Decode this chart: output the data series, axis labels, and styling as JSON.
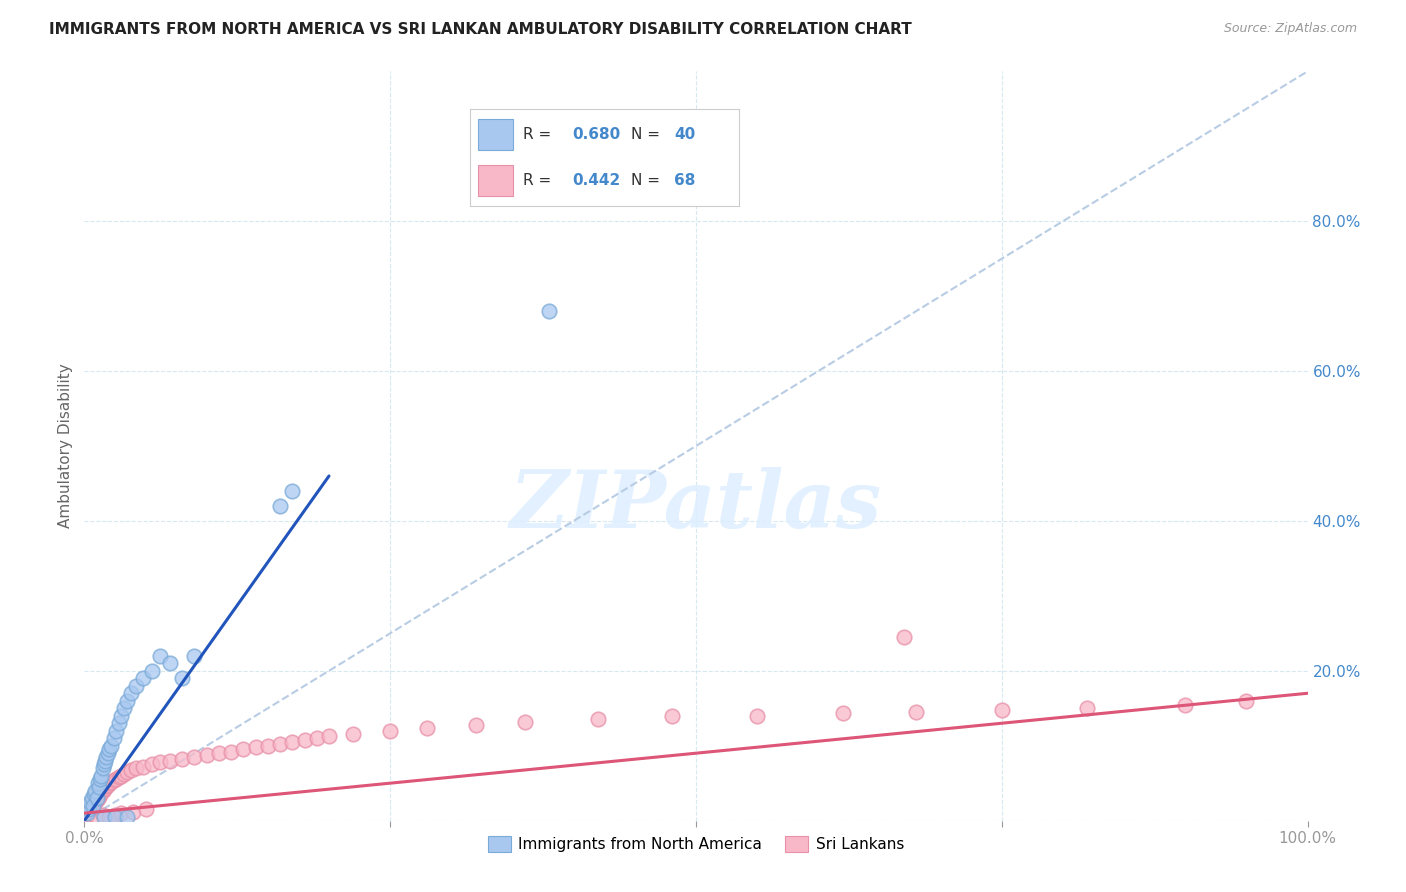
{
  "title": "IMMIGRANTS FROM NORTH AMERICA VS SRI LANKAN AMBULATORY DISABILITY CORRELATION CHART",
  "source": "Source: ZipAtlas.com",
  "ylabel": "Ambulatory Disability",
  "xlim": [
    0.0,
    1.0
  ],
  "ylim": [
    0.0,
    1.0
  ],
  "xtick_positions": [
    0.0,
    0.25,
    0.5,
    0.75,
    1.0
  ],
  "xticklabels": [
    "0.0%",
    "",
    "",
    "",
    "100.0%"
  ],
  "ytick_right_positions": [
    0.0,
    0.2,
    0.4,
    0.6,
    0.8
  ],
  "ytick_right_labels": [
    "",
    "20.0%",
    "40.0%",
    "60.0%",
    "80.0%"
  ],
  "blue_R": 0.68,
  "blue_N": 40,
  "pink_R": 0.442,
  "pink_N": 68,
  "blue_scatter_color": "#a8c8f0",
  "blue_edge_color": "#7aaad8",
  "pink_scatter_color": "#f8b8c8",
  "pink_edge_color": "#e890a8",
  "blue_line_color": "#2255bb",
  "pink_line_color": "#dd5577",
  "diagonal_color": "#b8cce4",
  "grid_color": "#d8e8f0",
  "watermark_text": "ZIPatlas",
  "watermark_color": "#ddeeff",
  "blue_x": [
    0.002,
    0.003,
    0.004,
    0.005,
    0.006,
    0.007,
    0.008,
    0.009,
    0.01,
    0.011,
    0.012,
    0.013,
    0.014,
    0.015,
    0.016,
    0.017,
    0.018,
    0.019,
    0.02,
    0.022,
    0.024,
    0.026,
    0.028,
    0.03,
    0.032,
    0.035,
    0.038,
    0.042,
    0.048,
    0.055,
    0.062,
    0.07,
    0.08,
    0.09,
    0.016,
    0.025,
    0.035,
    0.16,
    0.17,
    0.38
  ],
  "blue_y": [
    0.01,
    0.02,
    0.015,
    0.025,
    0.03,
    0.02,
    0.035,
    0.04,
    0.03,
    0.05,
    0.045,
    0.055,
    0.06,
    0.07,
    0.075,
    0.08,
    0.085,
    0.09,
    0.095,
    0.1,
    0.11,
    0.12,
    0.13,
    0.14,
    0.15,
    0.16,
    0.17,
    0.18,
    0.19,
    0.2,
    0.22,
    0.21,
    0.19,
    0.22,
    0.005,
    0.005,
    0.005,
    0.42,
    0.44,
    0.68
  ],
  "pink_x": [
    0.001,
    0.002,
    0.003,
    0.004,
    0.005,
    0.006,
    0.007,
    0.008,
    0.009,
    0.01,
    0.011,
    0.012,
    0.013,
    0.014,
    0.015,
    0.016,
    0.017,
    0.018,
    0.019,
    0.02,
    0.022,
    0.024,
    0.026,
    0.028,
    0.03,
    0.032,
    0.035,
    0.038,
    0.042,
    0.048,
    0.055,
    0.062,
    0.07,
    0.08,
    0.09,
    0.1,
    0.11,
    0.12,
    0.13,
    0.14,
    0.15,
    0.16,
    0.17,
    0.18,
    0.19,
    0.2,
    0.22,
    0.25,
    0.28,
    0.32,
    0.36,
    0.42,
    0.48,
    0.55,
    0.62,
    0.68,
    0.75,
    0.82,
    0.9,
    0.95,
    0.01,
    0.015,
    0.02,
    0.025,
    0.03,
    0.04,
    0.05,
    0.67
  ],
  "pink_y": [
    0.005,
    0.008,
    0.01,
    0.012,
    0.015,
    0.018,
    0.02,
    0.022,
    0.025,
    0.028,
    0.03,
    0.032,
    0.035,
    0.038,
    0.04,
    0.042,
    0.044,
    0.046,
    0.048,
    0.05,
    0.052,
    0.054,
    0.056,
    0.058,
    0.06,
    0.062,
    0.065,
    0.068,
    0.07,
    0.072,
    0.075,
    0.078,
    0.08,
    0.082,
    0.085,
    0.088,
    0.09,
    0.092,
    0.095,
    0.098,
    0.1,
    0.102,
    0.105,
    0.108,
    0.11,
    0.113,
    0.116,
    0.12,
    0.124,
    0.128,
    0.132,
    0.136,
    0.14,
    0.14,
    0.143,
    0.145,
    0.148,
    0.15,
    0.155,
    0.16,
    0.005,
    0.008,
    0.005,
    0.008,
    0.01,
    0.012,
    0.015,
    0.245
  ],
  "blue_line_x": [
    0.0,
    0.2
  ],
  "blue_line_y": [
    0.0,
    0.46
  ],
  "pink_line_x": [
    0.0,
    1.0
  ],
  "pink_line_y": [
    0.01,
    0.17
  ],
  "diag_line_x": [
    0.0,
    1.0
  ],
  "diag_line_y": [
    0.0,
    1.0
  ]
}
